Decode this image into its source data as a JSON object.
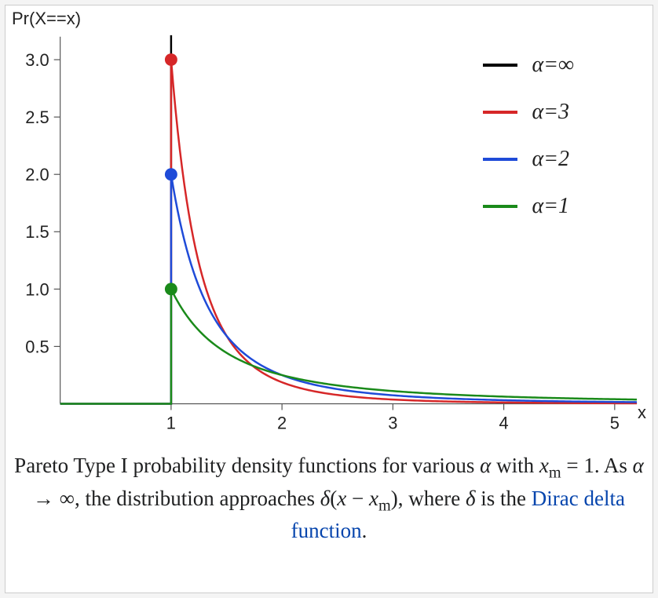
{
  "chart": {
    "type": "line",
    "background_color": "#ffffff",
    "grid_color": "#bbbbbb",
    "axis_color": "#555555",
    "tick_fontsize": 22,
    "tick_color": "#222222",
    "xlim": [
      0,
      5.2
    ],
    "ylim": [
      0,
      3.2
    ],
    "xticks": [
      1,
      2,
      3,
      4,
      5
    ],
    "yticks": [
      0.5,
      1.0,
      1.5,
      2.0,
      2.5,
      3.0
    ],
    "xlabel": "x",
    "ylabel": "Pr(X==x)",
    "series": [
      {
        "name": "alpha-inf",
        "label_html": "α=∞",
        "color": "#000000",
        "line_width": 2.5,
        "marker": "none",
        "points": [
          [
            1.0,
            0.0
          ],
          [
            1.0,
            3.2
          ]
        ]
      },
      {
        "name": "alpha-3",
        "label_html": "α=3",
        "color": "#d62728",
        "line_width": 2.5,
        "marker": {
          "x": 1,
          "y": 3,
          "r": 8
        },
        "alpha": 3
      },
      {
        "name": "alpha-2",
        "label_html": "α=2",
        "color": "#1f4bd8",
        "line_width": 2.5,
        "marker": {
          "x": 1,
          "y": 2,
          "r": 8
        },
        "alpha": 2
      },
      {
        "name": "alpha-1",
        "label_html": "α=1",
        "color": "#1a8a1a",
        "line_width": 2.5,
        "marker": {
          "x": 1,
          "y": 1,
          "r": 8
        },
        "alpha": 1
      }
    ],
    "legend_position": "top-right"
  },
  "ylabel": "Pr(X==x)",
  "xlabel": "x",
  "yticks_labels": {
    "0": "0.5",
    "1": "1.0",
    "2": "1.5",
    "3": "2.0",
    "4": "2.5",
    "5": "3.0"
  },
  "xticks_labels": {
    "0": "1",
    "1": "2",
    "2": "3",
    "3": "4",
    "4": "5"
  },
  "legend": {
    "0": {
      "label": "α=∞"
    },
    "1": {
      "label": "α=3"
    },
    "2": {
      "label": "α=2"
    },
    "3": {
      "label": "α=1"
    }
  },
  "caption_text": "Pareto Type I probability density functions for various α with x_m = 1. As α → ∞, the distribution approaches δ(x − x_m), where δ is the Dirac delta function.",
  "link_text": "Dirac delta function",
  "colors": {
    "inf": "#000000",
    "a3": "#d62728",
    "a2": "#1f4bd8",
    "a1": "#1a8a1a"
  }
}
